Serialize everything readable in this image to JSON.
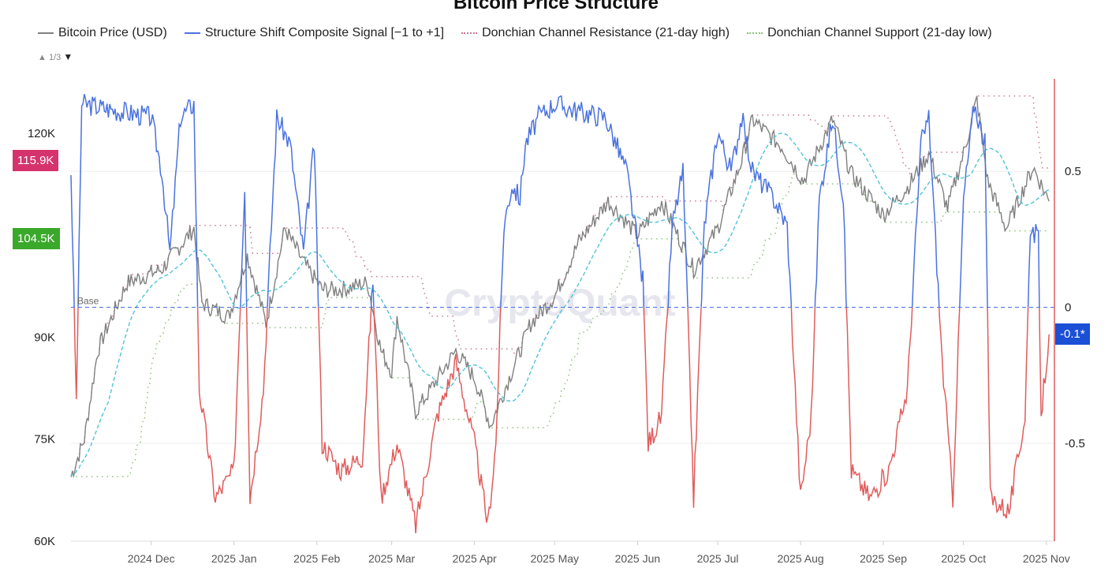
{
  "chart_data": {
    "type": "line",
    "title": "Bitcoin Price Structure",
    "legend": {
      "position": "top",
      "page": "1/3",
      "entries": [
        {
          "name": "Bitcoin Price (USD)",
          "color": "#808080",
          "style": "solid"
        },
        {
          "name": "Structure Shift Composite Signal [−1 to +1]",
          "color": "#4a72e0",
          "style": "solid"
        },
        {
          "name": "Donchian Channel Resistance (21-day high)",
          "color": "#c87a92",
          "style": "dotted"
        },
        {
          "name": "Donchian Channel Support (21-day low)",
          "color": "#8cc07a",
          "style": "dotted"
        }
      ]
    },
    "left_axis": {
      "ticks": [
        60000,
        75000,
        90000,
        120000
      ],
      "tick_labels": [
        "60K",
        "75K",
        "90K",
        "120K"
      ],
      "ylim": [
        60000,
        128000
      ]
    },
    "right_axis": {
      "ticks": [
        0.5,
        0,
        -0.5
      ],
      "tick_labels": [
        "0.5",
        "0",
        "-0.5"
      ],
      "ylim": [
        -0.86,
        0.84
      ]
    },
    "x_ticks": [
      [
        "2024-12-01",
        "2024 Dec"
      ],
      [
        "2025-01-01",
        "2025 Jan"
      ],
      [
        "2025-02-01",
        "2025 Feb"
      ],
      [
        "2025-03-01",
        "2025 Mar"
      ],
      [
        "2025-04-01",
        "2025 Apr"
      ],
      [
        "2025-05-01",
        "2025 May"
      ],
      [
        "2025-06-01",
        "2025 Jun"
      ],
      [
        "2025-07-01",
        "2025 Jul"
      ],
      [
        "2025-08-01",
        "2025 Aug"
      ],
      [
        "2025-09-01",
        "2025 Sep"
      ],
      [
        "2025-10-01",
        "2025 Oct"
      ],
      [
        "2025-11-01",
        "2025 Nov"
      ]
    ],
    "xlim": [
      "2024-11-01",
      "2025-11-04"
    ],
    "base_line": {
      "value": 0,
      "label": "Base"
    },
    "signal_colors": {
      "positive": "#4a72e0",
      "negative": "#e05c5c"
    },
    "moving_average_color": "#4fc3d8",
    "markers": [
      {
        "label": "115.9K",
        "value": 115900,
        "axis": "left",
        "color": "#d6336c"
      },
      {
        "label": "104.5K",
        "value": 104500,
        "axis": "left",
        "color": "#3aa82a"
      },
      {
        "label": "-0.1*",
        "value": -0.1,
        "axis": "right",
        "color": "#1a4fd6"
      }
    ],
    "watermark": "CryptoQuant",
    "price": [
      [
        "2024-11-01",
        69500
      ],
      [
        "2024-11-06",
        75000
      ],
      [
        "2024-11-11",
        88000
      ],
      [
        "2024-11-13",
        90000
      ],
      [
        "2024-11-22",
        98000
      ],
      [
        "2024-12-05",
        100000
      ],
      [
        "2024-12-17",
        106000
      ],
      [
        "2024-12-20",
        95000
      ],
      [
        "2024-12-30",
        93000
      ],
      [
        "2025-01-06",
        102000
      ],
      [
        "2025-01-13",
        92000
      ],
      [
        "2025-01-20",
        106000
      ],
      [
        "2025-01-27",
        101000
      ],
      [
        "2025-02-03",
        97000
      ],
      [
        "2025-02-10",
        97000
      ],
      [
        "2025-02-20",
        98000
      ],
      [
        "2025-02-25",
        88000
      ],
      [
        "2025-03-01",
        85000
      ],
      [
        "2025-03-03",
        93000
      ],
      [
        "2025-03-10",
        79000
      ],
      [
        "2025-03-20",
        85000
      ],
      [
        "2025-03-25",
        88000
      ],
      [
        "2025-04-01",
        84000
      ],
      [
        "2025-04-07",
        77000
      ],
      [
        "2025-04-14",
        84000
      ],
      [
        "2025-04-22",
        92000
      ],
      [
        "2025-05-01",
        96000
      ],
      [
        "2025-05-10",
        104000
      ],
      [
        "2025-05-21",
        110000
      ],
      [
        "2025-06-01",
        105000
      ],
      [
        "2025-06-10",
        110000
      ],
      [
        "2025-06-22",
        100000
      ],
      [
        "2025-07-01",
        106000
      ],
      [
        "2025-07-10",
        116000
      ],
      [
        "2025-07-14",
        122000
      ],
      [
        "2025-07-25",
        118000
      ],
      [
        "2025-08-02",
        113000
      ],
      [
        "2025-08-13",
        122000
      ],
      [
        "2025-08-20",
        114000
      ],
      [
        "2025-09-01",
        108000
      ],
      [
        "2025-09-10",
        112000
      ],
      [
        "2025-09-18",
        117000
      ],
      [
        "2025-09-25",
        109000
      ],
      [
        "2025-10-01",
        117000
      ],
      [
        "2025-10-06",
        125000
      ],
      [
        "2025-10-10",
        113000
      ],
      [
        "2025-10-17",
        106000
      ],
      [
        "2025-10-27",
        115000
      ],
      [
        "2025-11-02",
        110000
      ]
    ],
    "signal": [
      [
        "2024-11-01",
        0.5
      ],
      [
        "2024-11-03",
        -0.35
      ],
      [
        "2024-11-05",
        0.75
      ],
      [
        "2024-11-20",
        0.72
      ],
      [
        "2024-12-01",
        0.7
      ],
      [
        "2024-12-05",
        0.5
      ],
      [
        "2024-12-08",
        0.2
      ],
      [
        "2024-12-12",
        0.7
      ],
      [
        "2024-12-17",
        0.75
      ],
      [
        "2024-12-19",
        -0.3
      ],
      [
        "2024-12-25",
        -0.7
      ],
      [
        "2025-01-01",
        -0.6
      ],
      [
        "2025-01-05",
        0.45
      ],
      [
        "2025-01-07",
        -0.7
      ],
      [
        "2025-01-12",
        -0.3
      ],
      [
        "2025-01-17",
        0.7
      ],
      [
        "2025-01-22",
        0.6
      ],
      [
        "2025-01-27",
        0.2
      ],
      [
        "2025-01-31",
        0.6
      ],
      [
        "2025-02-03",
        -0.5
      ],
      [
        "2025-02-10",
        -0.6
      ],
      [
        "2025-02-18",
        -0.55
      ],
      [
        "2025-02-22",
        0.1
      ],
      [
        "2025-02-25",
        -0.7
      ],
      [
        "2025-03-03",
        -0.5
      ],
      [
        "2025-03-10",
        -0.8
      ],
      [
        "2025-03-18",
        -0.4
      ],
      [
        "2025-03-25",
        -0.2
      ],
      [
        "2025-04-01",
        -0.5
      ],
      [
        "2025-04-06",
        -0.8
      ],
      [
        "2025-04-09",
        -0.5
      ],
      [
        "2025-04-12",
        0.3
      ],
      [
        "2025-04-15",
        0.45
      ],
      [
        "2025-04-18",
        0.4
      ],
      [
        "2025-04-20",
        0.6
      ],
      [
        "2025-04-25",
        0.7
      ],
      [
        "2025-05-01",
        0.75
      ],
      [
        "2025-05-10",
        0.72
      ],
      [
        "2025-05-20",
        0.7
      ],
      [
        "2025-05-28",
        0.5
      ],
      [
        "2025-06-03",
        0.1
      ],
      [
        "2025-06-05",
        -0.5
      ],
      [
        "2025-06-10",
        -0.4
      ],
      [
        "2025-06-14",
        0.3
      ],
      [
        "2025-06-18",
        0.5
      ],
      [
        "2025-06-22",
        -0.7
      ],
      [
        "2025-06-26",
        0.3
      ],
      [
        "2025-07-01",
        0.65
      ],
      [
        "2025-07-06",
        0.5
      ],
      [
        "2025-07-10",
        0.7
      ],
      [
        "2025-07-14",
        0.5
      ],
      [
        "2025-07-22",
        0.4
      ],
      [
        "2025-07-27",
        0.3
      ],
      [
        "2025-08-01",
        -0.7
      ],
      [
        "2025-08-05",
        -0.4
      ],
      [
        "2025-08-08",
        0.4
      ],
      [
        "2025-08-13",
        0.7
      ],
      [
        "2025-08-17",
        0.4
      ],
      [
        "2025-08-20",
        -0.6
      ],
      [
        "2025-08-27",
        -0.7
      ],
      [
        "2025-09-03",
        -0.6
      ],
      [
        "2025-09-10",
        -0.3
      ],
      [
        "2025-09-15",
        0.6
      ],
      [
        "2025-09-18",
        0.7
      ],
      [
        "2025-09-23",
        -0.2
      ],
      [
        "2025-09-27",
        -0.7
      ],
      [
        "2025-10-01",
        0.4
      ],
      [
        "2025-10-05",
        0.75
      ],
      [
        "2025-10-09",
        0.6
      ],
      [
        "2025-10-11",
        -0.7
      ],
      [
        "2025-10-18",
        -0.75
      ],
      [
        "2025-10-24",
        -0.4
      ],
      [
        "2025-10-26",
        0.3
      ],
      [
        "2025-10-29",
        0.25
      ],
      [
        "2025-10-30",
        -0.4
      ],
      [
        "2025-11-02",
        -0.1
      ]
    ]
  }
}
